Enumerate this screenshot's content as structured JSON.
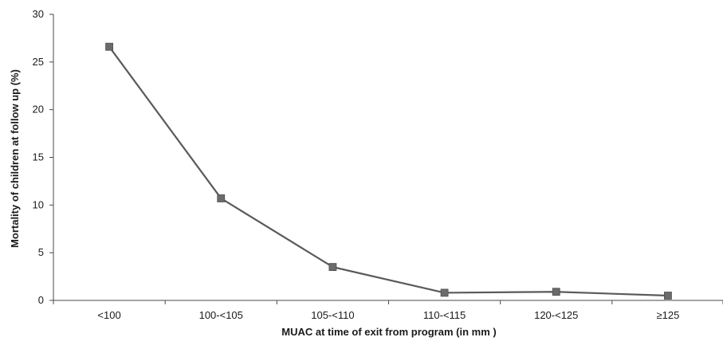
{
  "chart_data": {
    "type": "line",
    "categories": [
      "<100",
      "100-<105",
      "105-<110",
      "110-<115",
      "120-<125",
      "≥125"
    ],
    "series": [
      {
        "values": [
          26.6,
          10.7,
          3.5,
          0.8,
          0.9,
          0.5
        ]
      }
    ],
    "title": "",
    "xlabel": "MUAC at time of exit from program (in mm )",
    "ylabel": "Mortality of children at follow up  (%)",
    "ylim": [
      0,
      30
    ],
    "yticks": [
      "0",
      "5",
      "10",
      "15",
      "20",
      "25",
      "30"
    ],
    "grid": false,
    "legend": "none",
    "colors": {
      "line": "#5a5a5a",
      "marker": "#6b6b6b",
      "axis": "#4a4a4a"
    }
  }
}
